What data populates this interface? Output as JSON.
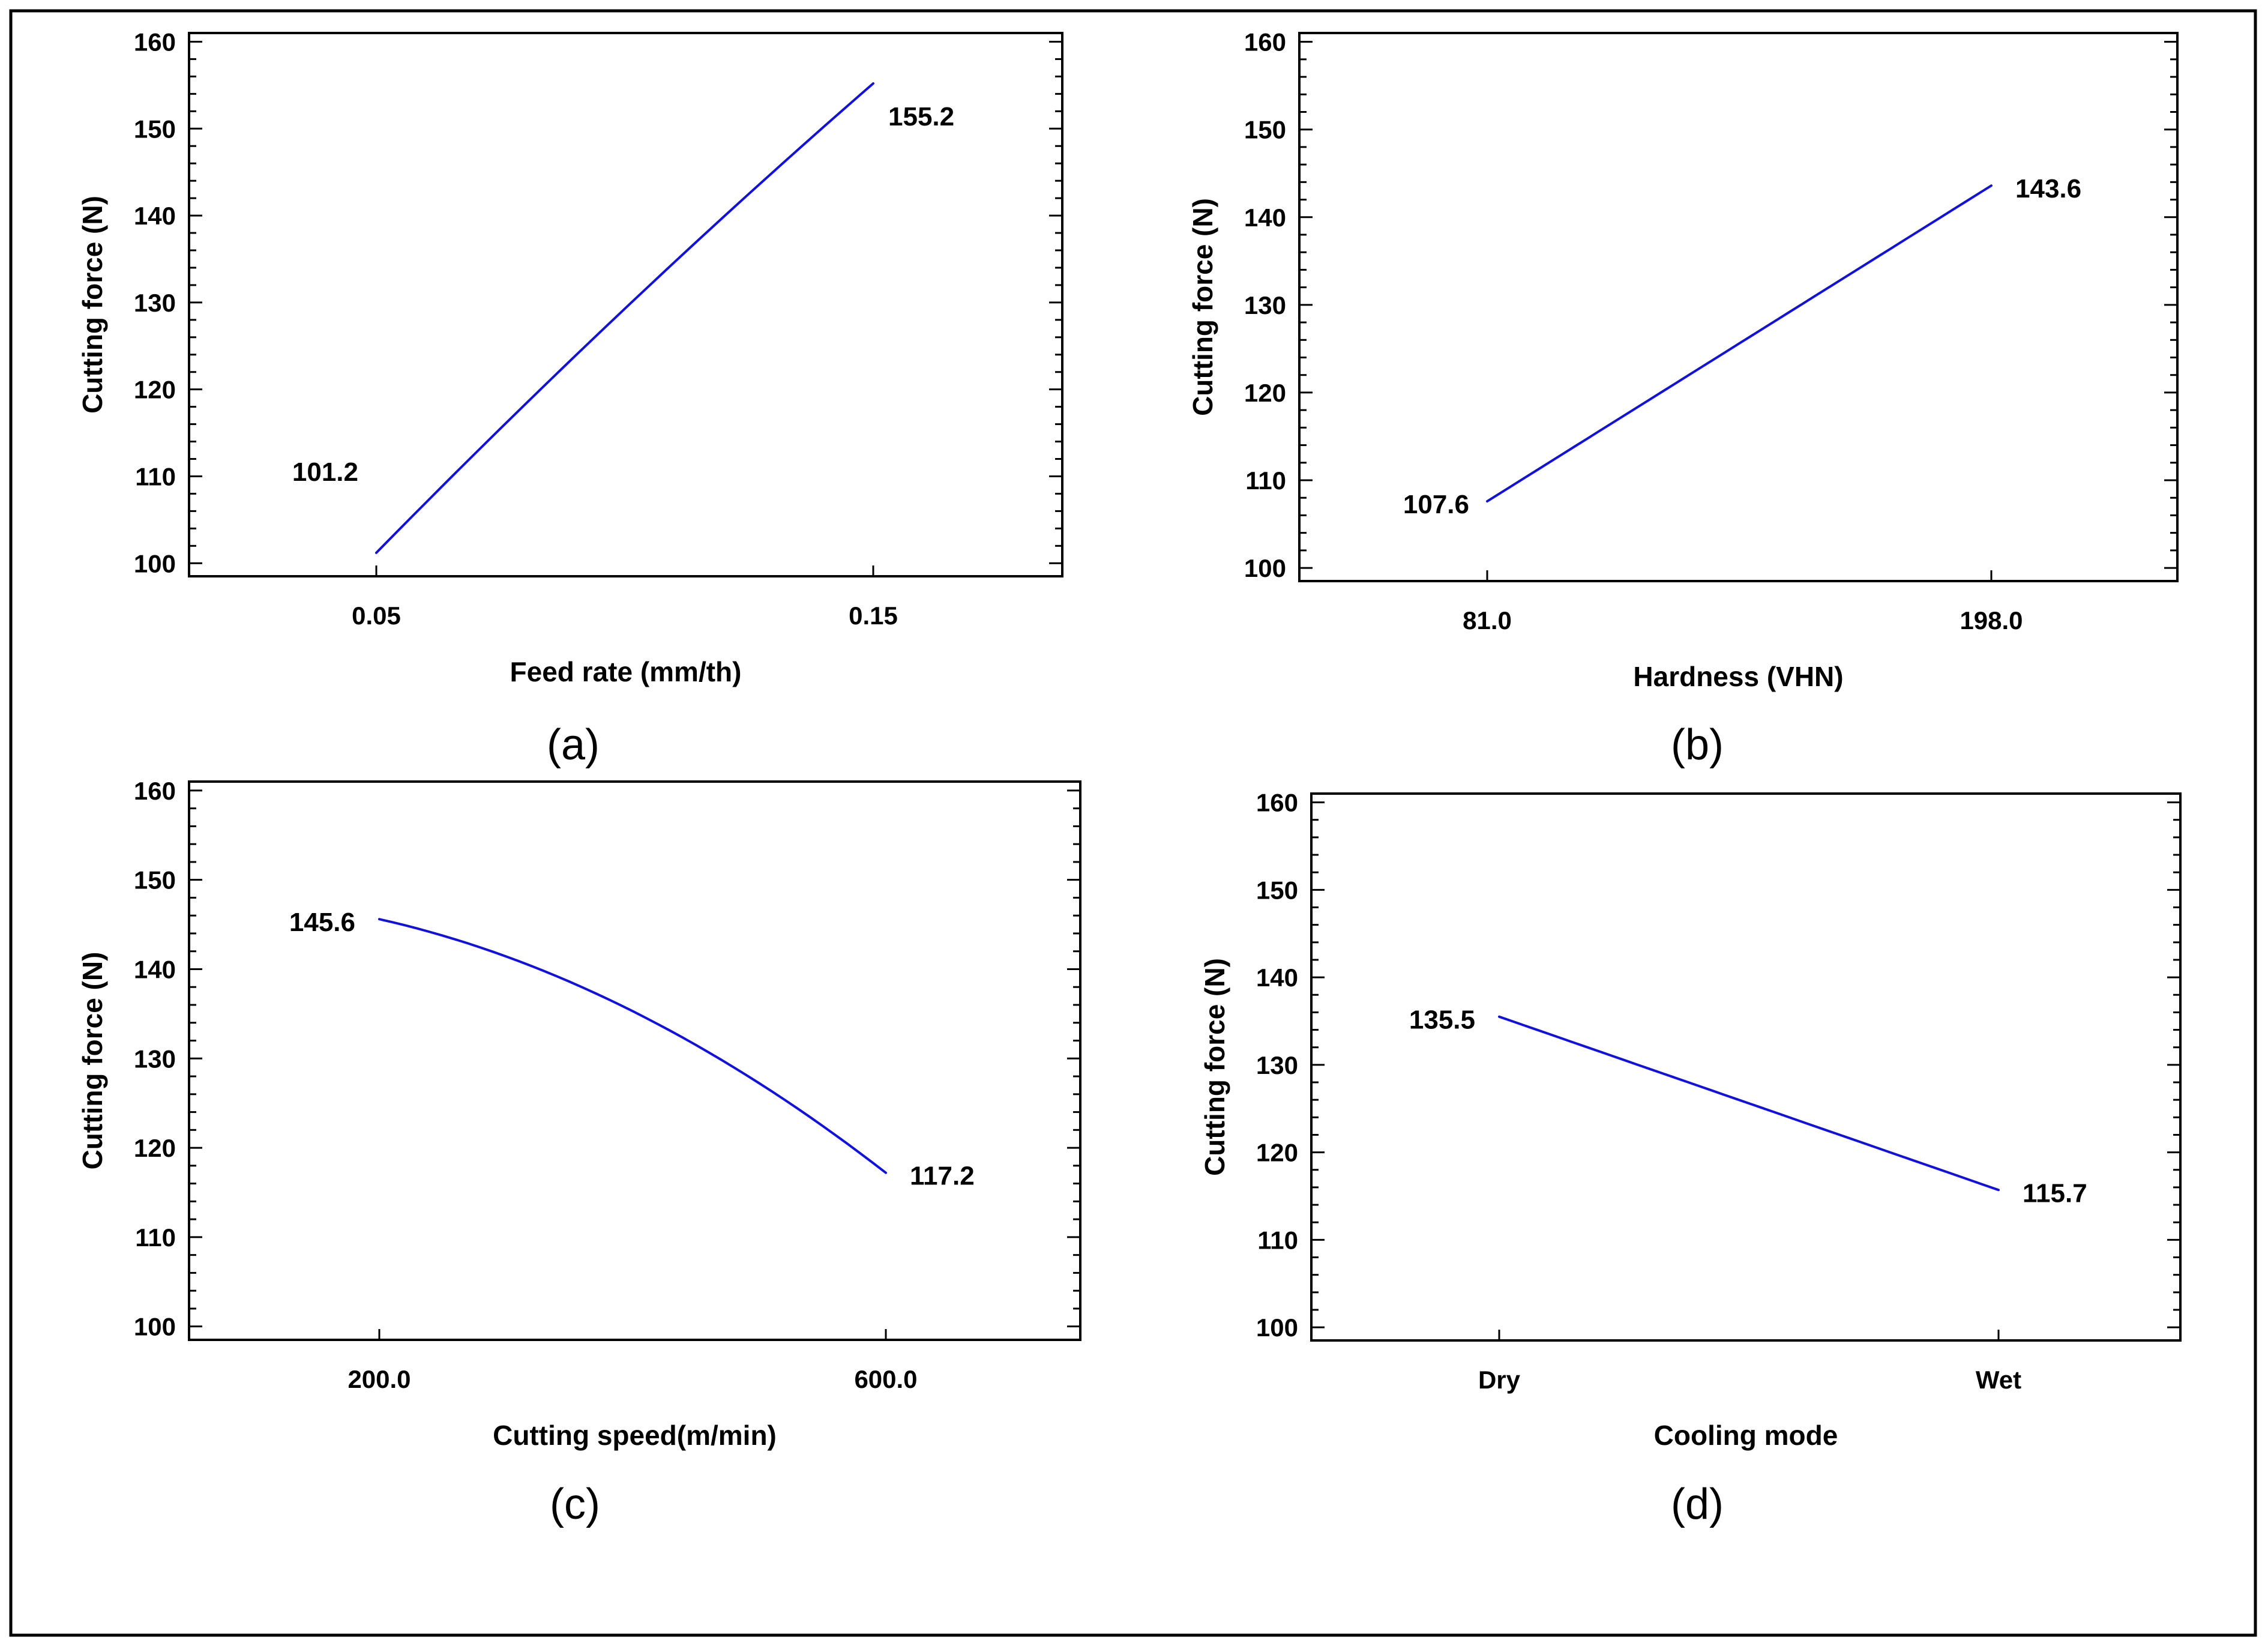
{
  "colors": {
    "line": "#1010e0",
    "axis": "#000000",
    "background": "#ffffff"
  },
  "chart_data": [
    {
      "type": "line",
      "panel": "(a)",
      "xlabel": "Feed rate (mm/th)",
      "ylabel": "Cutting force (N)",
      "yticks": [
        100,
        110,
        120,
        130,
        140,
        150,
        160
      ],
      "ylim": [
        98.5,
        161
      ],
      "xticks": [
        "0.05",
        "0.15"
      ],
      "curvature": 0.08,
      "series": [
        {
          "name": "Cutting force",
          "start": 101.2,
          "end": 155.2
        }
      ],
      "labels": {
        "start": "101.2",
        "end": "155.2"
      }
    },
    {
      "type": "line",
      "panel": "(b)",
      "xlabel": "Hardness (VHN)",
      "ylabel": "Cutting force (N)",
      "yticks": [
        100,
        110,
        120,
        130,
        140,
        150,
        160
      ],
      "ylim": [
        98.5,
        161
      ],
      "xticks": [
        "81.0",
        "198.0"
      ],
      "curvature": 0.0,
      "series": [
        {
          "name": "Cutting force",
          "start": 107.6,
          "end": 143.6
        }
      ],
      "labels": {
        "start": "107.6",
        "end": "143.6"
      }
    },
    {
      "type": "line",
      "panel": "(c)",
      "xlabel": "Cutting speed(m/min)",
      "ylabel": "Cutting force (N)",
      "yticks": [
        100,
        110,
        120,
        130,
        140,
        150,
        160
      ],
      "ylim": [
        98.5,
        161
      ],
      "xticks": [
        "200.0",
        "600.0"
      ],
      "curvature": -0.55,
      "series": [
        {
          "name": "Cutting force",
          "start": 145.6,
          "end": 117.2
        }
      ],
      "labels": {
        "start": "145.6",
        "end": "117.2"
      }
    },
    {
      "type": "line",
      "panel": "(d)",
      "xlabel": "Cooling mode",
      "ylabel": "Cutting force (N)",
      "yticks": [
        100,
        110,
        120,
        130,
        140,
        150,
        160
      ],
      "ylim": [
        98.5,
        161
      ],
      "xticks": [
        "Dry",
        "Wet"
      ],
      "curvature": 0.0,
      "series": [
        {
          "name": "Cutting force",
          "start": 135.5,
          "end": 115.7
        }
      ],
      "labels": {
        "start": "135.5",
        "end": "115.7"
      }
    }
  ]
}
